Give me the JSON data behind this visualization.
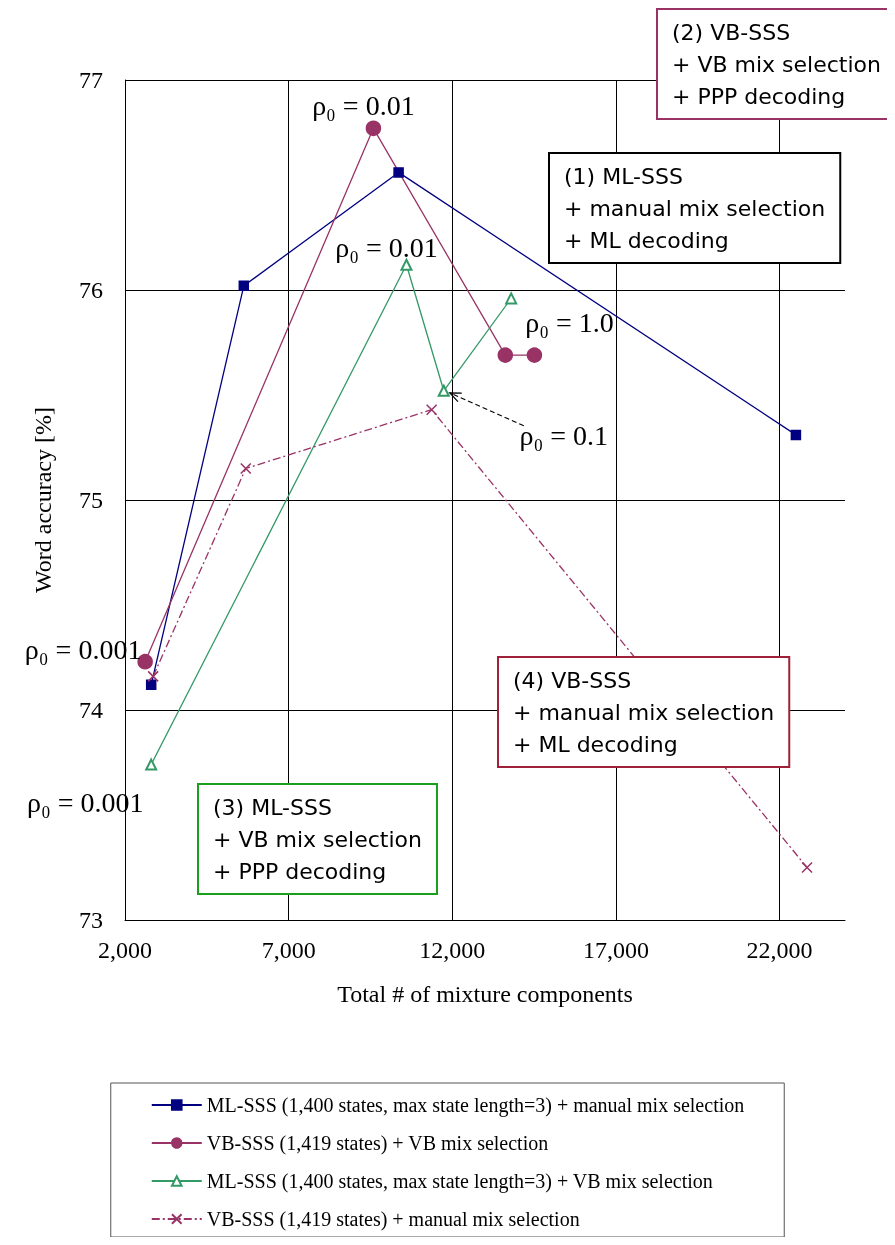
{
  "chart_data": {
    "type": "line",
    "xlabel": "Total # of mixture components",
    "ylabel": "Word accuracy [%]",
    "xlim": [
      2000,
      24000
    ],
    "xticks": [
      {
        "value": 2000,
        "label": "2,000"
      },
      {
        "value": 7000,
        "label": "7,000"
      },
      {
        "value": 12000,
        "label": "12,000"
      },
      {
        "value": 17000,
        "label": "17,000"
      },
      {
        "value": 22000,
        "label": "22,000"
      }
    ],
    "ylim": [
      73,
      77
    ],
    "yticks": [
      73,
      74,
      75,
      76,
      77
    ],
    "grid": true,
    "legend": "bottom",
    "series": [
      {
        "name": "ML-SSS (1,400 states, max state length=3) + manual mix selection",
        "color": "#000080",
        "marker": "square",
        "line_style": "solid",
        "x": [
          2800,
          5630,
          10360,
          22500
        ],
        "values": [
          74.12,
          76.02,
          76.56,
          75.31
        ]
      },
      {
        "name": "VB-SSS (1,419 states) + VB mix selection",
        "color": "#993366",
        "marker": "circle",
        "line_style": "solid",
        "x": [
          2615,
          9590,
          13620,
          14510
        ],
        "values": [
          74.23,
          76.77,
          75.69,
          75.69
        ]
      },
      {
        "name": "ML-SSS (1,400 states, max state length=3) + VB mix selection",
        "color": "#339966",
        "marker": "triangle",
        "line_style": "solid",
        "x": [
          2800,
          10600,
          11740,
          13800
        ],
        "values": [
          73.74,
          76.12,
          75.52,
          75.96
        ]
      },
      {
        "name": "VB-SSS (1,419 states) + manual mix selection",
        "color": "#993366",
        "marker": "cross",
        "line_style": "dashed",
        "x": [
          2860,
          5690,
          11370,
          22840
        ],
        "values": [
          74.16,
          75.15,
          75.43,
          73.25
        ]
      }
    ],
    "annotations": [
      "(2) VB-SSS\n+ VB mix selection\n+ PPP decoding",
      "(1) ML-SSS\n+ manual mix selection\n+ ML decoding",
      "(4) VB-SSS\n+ manual mix selection\n+ ML decoding",
      "(3) ML-SSS\n+ VB mix selection\n+ PPP decoding",
      {
        "text": "ρ₀ = 0.01",
        "x": 9590,
        "y": 76.77
      },
      {
        "text": "ρ₀ = 0.01",
        "x": 10600,
        "y": 76.12
      },
      {
        "text": "ρ₀ = 1.0",
        "x": 14510,
        "y": 75.69
      },
      {
        "text": "ρ₀ = 0.1",
        "x": 11740,
        "y": 75.52
      },
      {
        "text": "ρ₀ = 0.001",
        "x": 2615,
        "y": 74.23
      },
      {
        "text": "ρ₀ = 0.001",
        "x": 2800,
        "y": 73.74
      }
    ]
  }
}
